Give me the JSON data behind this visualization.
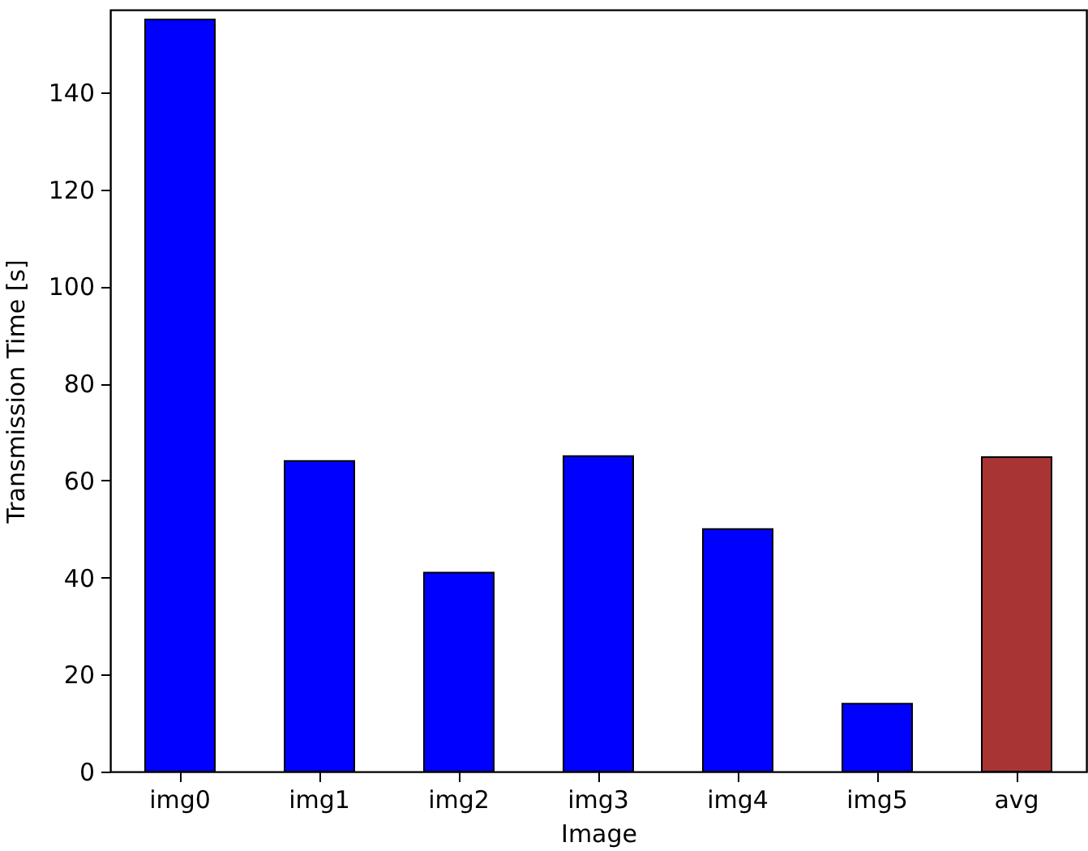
{
  "chart_data": {
    "type": "bar",
    "xlabel": "Image",
    "ylabel": "Transmission Time [s]",
    "categories": [
      "img0",
      "img1",
      "img2",
      "img3",
      "img4",
      "img5",
      "avg"
    ],
    "values": [
      155,
      64,
      41,
      65,
      50,
      14,
      64.8
    ],
    "colors": [
      "#0000ff",
      "#0000ff",
      "#0000ff",
      "#0000ff",
      "#0000ff",
      "#0000ff",
      "#a83434"
    ],
    "ylim": [
      0,
      157
    ],
    "yticks": [
      0,
      20,
      40,
      60,
      80,
      100,
      120,
      140
    ],
    "grid": false
  }
}
